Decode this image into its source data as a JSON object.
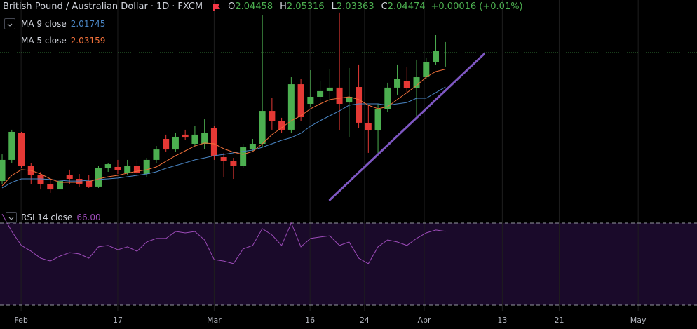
{
  "chart_data": {
    "type": "candlestick",
    "title": "British Pound / Australian Dollar",
    "separator": "·",
    "interval": "1D",
    "source": "FXCM",
    "ohlc_prefixes": [
      "O",
      "H",
      "L",
      "C"
    ],
    "change_label": "+0.00016 (+0.01%)",
    "up_color": "#4caf50",
    "down_color": "#e53935",
    "grid": true,
    "xlim": [
      -0.22,
      72.1
    ],
    "xticks": [
      {
        "value": 1.97,
        "label": "Feb"
      },
      {
        "value": 12.0,
        "label": "17"
      },
      {
        "value": 22.0,
        "label": "Mar"
      },
      {
        "value": 31.95,
        "label": "16"
      },
      {
        "value": 37.6,
        "label": "24"
      },
      {
        "value": 43.8,
        "label": "Apr"
      },
      {
        "value": 51.9,
        "label": "13"
      },
      {
        "value": 57.8,
        "label": "21"
      },
      {
        "value": 66.0,
        "label": "May"
      }
    ],
    "ylim": [
      1.9231,
      2.0866
    ],
    "open": [
      1.9426,
      1.9594,
      1.9806,
      1.9549,
      1.9471,
      1.9404,
      1.9359,
      1.9471,
      1.9443,
      1.9426,
      1.9382,
      1.9527,
      1.9538,
      1.9493,
      1.9549,
      1.9482,
      1.9594,
      1.9761,
      1.9677,
      1.9795,
      1.9722,
      1.9722,
      1.985,
      1.9616,
      1.9583,
      1.9549,
      1.9683,
      1.9722,
      1.9984,
      1.9906,
      1.9834,
      2.0196,
      2.004,
      2.0096,
      2.0141,
      2.0169,
      2.0051,
      2.0174,
      1.9884,
      1.9828,
      2.0001,
      2.0169,
      2.0224,
      2.0163,
      2.0252,
      2.0375,
      2.04458
    ],
    "high": [
      1.9638,
      1.9834,
      1.9817,
      1.9571,
      1.9499,
      1.9443,
      1.946,
      1.9516,
      1.9482,
      1.9471,
      1.9544,
      1.9571,
      1.9594,
      1.9594,
      1.9594,
      1.961,
      1.9705,
      1.9795,
      1.9806,
      1.9834,
      1.9862,
      1.9917,
      1.9862,
      1.965,
      1.961,
      1.9722,
      1.9761,
      2.0743,
      2.0085,
      1.9929,
      2.0252,
      2.0241,
      2.0308,
      2.0224,
      2.0319,
      2.0766,
      2.0325,
      2.0353,
      2.0029,
      2.004,
      2.0208,
      2.0353,
      2.0336,
      2.0392,
      2.0408,
      2.0587,
      2.05316
    ],
    "low": [
      1.9404,
      1.9571,
      1.9527,
      1.9404,
      1.9359,
      1.9332,
      1.9348,
      1.9404,
      1.9382,
      1.9371,
      1.9371,
      1.9499,
      1.9482,
      1.9471,
      1.946,
      1.946,
      1.9571,
      1.9661,
      1.9661,
      1.975,
      1.9705,
      1.9683,
      1.9594,
      1.946,
      1.9443,
      1.9527,
      1.9666,
      1.9694,
      1.9834,
      1.9806,
      1.9806,
      1.9906,
      2.0018,
      2.0029,
      2.0057,
      1.9834,
      1.9778,
      1.985,
      1.965,
      1.965,
      1.9973,
      2.0113,
      2.0129,
      1.9945,
      2.0241,
      2.0353,
      2.03363
    ],
    "close": [
      1.9594,
      1.9817,
      1.9549,
      1.9471,
      1.9404,
      1.9359,
      1.9426,
      1.9443,
      1.9404,
      1.9382,
      1.9527,
      1.956,
      1.951,
      1.9549,
      1.9493,
      1.9594,
      1.9677,
      1.9677,
      1.9778,
      1.9772,
      1.9795,
      1.9806,
      1.9627,
      1.9583,
      1.9549,
      1.9694,
      1.9722,
      1.9984,
      1.9906,
      1.9834,
      2.0196,
      1.9934,
      2.0096,
      2.0141,
      2.0169,
      2.004,
      2.0096,
      1.989,
      1.9828,
      2.0001,
      2.0169,
      2.0241,
      2.0163,
      2.0252,
      2.0375,
      2.0459,
      2.04474
    ],
    "series": [
      {
        "name": "MA 9 close",
        "color": "#4a86c5",
        "values": [
          1.9371,
          1.9415,
          1.9443,
          1.9443,
          1.9443,
          1.9438,
          1.9432,
          1.9426,
          1.9426,
          1.9432,
          1.9438,
          1.9443,
          1.9449,
          1.946,
          1.9471,
          1.9482,
          1.9499,
          1.9527,
          1.9549,
          1.9571,
          1.9594,
          1.961,
          1.9627,
          1.9638,
          1.965,
          1.9661,
          1.9672,
          1.9694,
          1.9722,
          1.975,
          1.9772,
          1.9806,
          1.9862,
          1.9906,
          1.9945,
          1.9984,
          2.0029,
          2.004,
          2.004,
          2.004,
          2.0029,
          2.004,
          2.0051,
          2.0085,
          2.0085,
          2.0129,
          2.01745
        ]
      },
      {
        "name": "MA 5 close",
        "color": "#f0703a",
        "values": [
          1.9387,
          1.9471,
          1.9516,
          1.951,
          1.9482,
          1.9443,
          1.9415,
          1.9415,
          1.9415,
          1.9421,
          1.9443,
          1.946,
          1.9471,
          1.9488,
          1.9504,
          1.9516,
          1.9538,
          1.9583,
          1.9627,
          1.9666,
          1.9705,
          1.9728,
          1.9722,
          1.9683,
          1.9655,
          1.9638,
          1.9661,
          1.9722,
          1.9795,
          1.985,
          1.9906,
          1.9945,
          2.0001,
          2.004,
          2.0074,
          2.0085,
          2.0096,
          2.0074,
          2.0029,
          2.0001,
          2.0018,
          2.0074,
          2.0129,
          2.0185,
          2.0252,
          2.0297,
          2.03159
        ]
      }
    ],
    "trendline": {
      "x": [
        34,
        50
      ],
      "y": [
        1.9276,
        2.0436
      ],
      "color": "#7e57c2"
    },
    "rsi": {
      "name": "RSI 14 close",
      "color": "#9c4bb8",
      "band_color": "#1a0a2a",
      "band": [
        30,
        70
      ],
      "ylim": [
        27.26,
        77.18
      ],
      "values": [
        74.4,
        65.9,
        59.1,
        56.3,
        52.9,
        51.5,
        53.9,
        55.6,
        55.0,
        52.9,
        58.4,
        59.1,
        57.0,
        58.4,
        56.3,
        60.8,
        62.5,
        62.5,
        65.9,
        65.2,
        65.9,
        61.8,
        52.2,
        51.5,
        50.2,
        57.4,
        59.1,
        67.3,
        64.2,
        59.1,
        70.0,
        58.4,
        62.5,
        63.2,
        63.8,
        59.1,
        60.8,
        52.9,
        50.2,
        58.4,
        61.8,
        60.8,
        59.1,
        62.5,
        65.2,
        66.6,
        66.0
      ],
      "last_value_label": "66.00"
    }
  }
}
